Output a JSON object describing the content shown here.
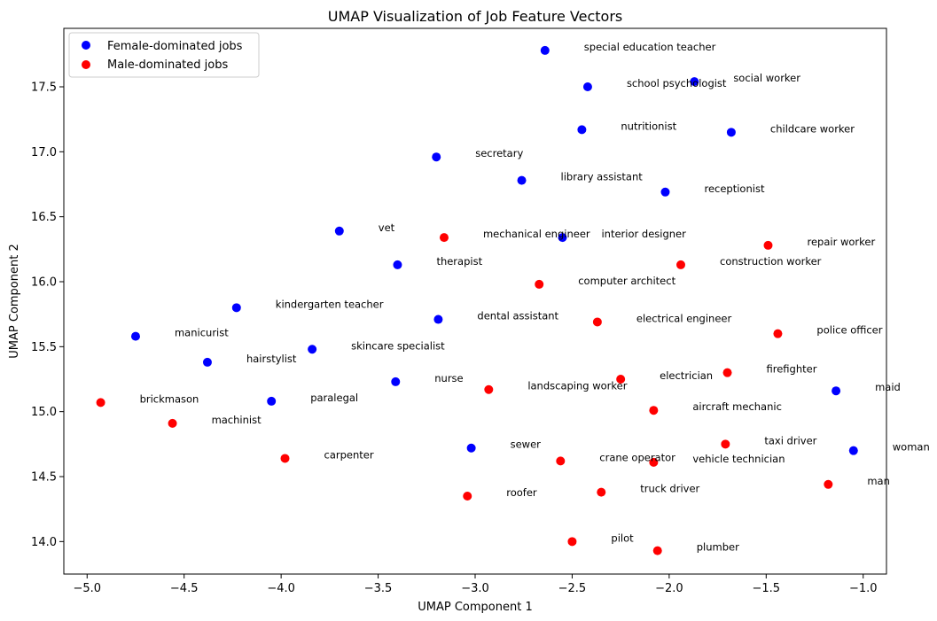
{
  "chart_data": {
    "type": "scatter",
    "title": "UMAP Visualization of Job Feature Vectors",
    "xlabel": "UMAP Component 1",
    "ylabel": "UMAP Component 2",
    "xlim": [
      -5.12,
      -0.88
    ],
    "ylim": [
      13.75,
      17.95
    ],
    "xticks": [
      -5.0,
      -4.5,
      -4.0,
      -3.5,
      -3.0,
      -2.5,
      -2.0,
      -1.5,
      -1.0
    ],
    "xtick_labels": [
      "−5.0",
      "−4.5",
      "−4.0",
      "−3.5",
      "−3.0",
      "−2.5",
      "−2.0",
      "−1.5",
      "−1.0"
    ],
    "yticks": [
      14.0,
      14.5,
      15.0,
      15.5,
      16.0,
      16.5,
      17.0,
      17.5
    ],
    "ytick_labels": [
      "14.0",
      "14.5",
      "15.0",
      "15.5",
      "16.0",
      "16.5",
      "17.0",
      "17.5"
    ],
    "grid": false,
    "legend_position": "top-left",
    "series": [
      {
        "name": "Female-dominated jobs",
        "color": "#0000ff",
        "points": [
          {
            "x": -2.64,
            "y": 17.78,
            "label": "special education teacher"
          },
          {
            "x": -2.42,
            "y": 17.5,
            "label": "school psychologist"
          },
          {
            "x": -1.87,
            "y": 17.54,
            "label": "social worker"
          },
          {
            "x": -2.45,
            "y": 17.17,
            "label": "nutritionist"
          },
          {
            "x": -1.68,
            "y": 17.15,
            "label": "childcare worker"
          },
          {
            "x": -3.2,
            "y": 16.96,
            "label": "secretary"
          },
          {
            "x": -2.76,
            "y": 16.78,
            "label": "library assistant"
          },
          {
            "x": -2.02,
            "y": 16.69,
            "label": "receptionist"
          },
          {
            "x": -3.7,
            "y": 16.39,
            "label": "vet"
          },
          {
            "x": -2.55,
            "y": 16.34,
            "label": "interior designer"
          },
          {
            "x": -3.4,
            "y": 16.13,
            "label": "therapist"
          },
          {
            "x": -4.23,
            "y": 15.8,
            "label": "kindergarten teacher"
          },
          {
            "x": -3.19,
            "y": 15.71,
            "label": "dental assistant"
          },
          {
            "x": -4.75,
            "y": 15.58,
            "label": "manicurist"
          },
          {
            "x": -3.84,
            "y": 15.48,
            "label": "skincare specialist"
          },
          {
            "x": -4.38,
            "y": 15.38,
            "label": "hairstylist"
          },
          {
            "x": -3.41,
            "y": 15.23,
            "label": "nurse"
          },
          {
            "x": -1.14,
            "y": 15.16,
            "label": "maid"
          },
          {
            "x": -4.05,
            "y": 15.08,
            "label": "paralegal"
          },
          {
            "x": -3.02,
            "y": 14.72,
            "label": "sewer"
          },
          {
            "x": -1.05,
            "y": 14.7,
            "label": "woman"
          }
        ]
      },
      {
        "name": "Male-dominated jobs",
        "color": "#ff0000",
        "points": [
          {
            "x": -3.16,
            "y": 16.34,
            "label": "mechanical engineer"
          },
          {
            "x": -1.49,
            "y": 16.28,
            "label": "repair worker"
          },
          {
            "x": -1.94,
            "y": 16.13,
            "label": "construction worker"
          },
          {
            "x": -2.67,
            "y": 15.98,
            "label": "computer architect"
          },
          {
            "x": -2.37,
            "y": 15.69,
            "label": "electrical engineer"
          },
          {
            "x": -1.44,
            "y": 15.6,
            "label": "police officer"
          },
          {
            "x": -1.7,
            "y": 15.3,
            "label": "firefighter"
          },
          {
            "x": -2.25,
            "y": 15.25,
            "label": "electrician"
          },
          {
            "x": -2.93,
            "y": 15.17,
            "label": "landscaping worker"
          },
          {
            "x": -4.93,
            "y": 15.07,
            "label": "brickmason"
          },
          {
            "x": -2.08,
            "y": 15.01,
            "label": "aircraft mechanic"
          },
          {
            "x": -4.56,
            "y": 14.91,
            "label": "machinist"
          },
          {
            "x": -1.71,
            "y": 14.75,
            "label": "taxi driver"
          },
          {
            "x": -3.98,
            "y": 14.64,
            "label": "carpenter"
          },
          {
            "x": -2.56,
            "y": 14.62,
            "label": "crane operator"
          },
          {
            "x": -2.08,
            "y": 14.61,
            "label": "vehicle technician"
          },
          {
            "x": -1.18,
            "y": 14.44,
            "label": "man"
          },
          {
            "x": -2.35,
            "y": 14.38,
            "label": "truck driver"
          },
          {
            "x": -3.04,
            "y": 14.35,
            "label": "roofer"
          },
          {
            "x": -2.5,
            "y": 14.0,
            "label": "pilot"
          },
          {
            "x": -2.06,
            "y": 13.93,
            "label": "plumber"
          }
        ]
      }
    ]
  }
}
